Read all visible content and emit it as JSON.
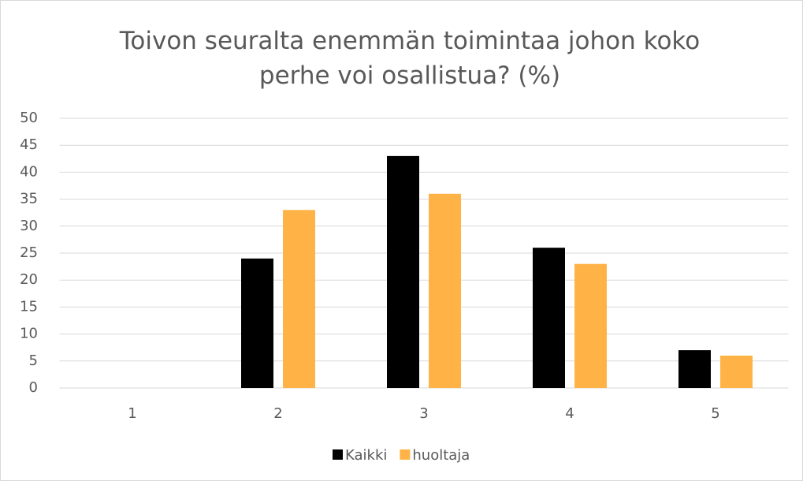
{
  "chart_data": {
    "type": "bar",
    "title": "Toivon seuralta enemmän toimintaa johon koko perhe voi osallistua? (%)",
    "categories": [
      "1",
      "2",
      "3",
      "4",
      "5"
    ],
    "series": [
      {
        "name": "Kaikki",
        "color": "#000000",
        "values": [
          0,
          24,
          43,
          26,
          7
        ]
      },
      {
        "name": "huoltaja",
        "color": "#ffb347",
        "values": [
          0,
          33,
          36,
          23,
          6
        ]
      }
    ],
    "ylim": [
      0,
      50
    ],
    "yticks": [
      0,
      5,
      10,
      15,
      20,
      25,
      30,
      35,
      40,
      45,
      50
    ],
    "grid": true,
    "legend": "bottom"
  }
}
